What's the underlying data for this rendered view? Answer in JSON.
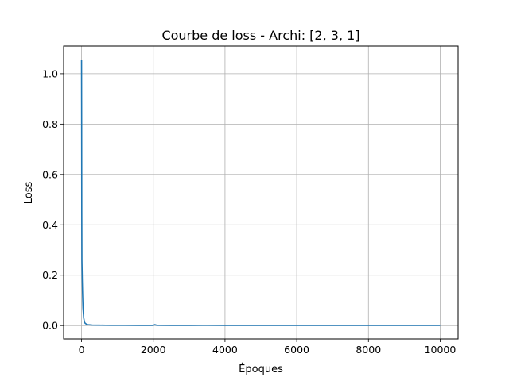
{
  "chart_data": {
    "type": "line",
    "title": "Courbe de loss - Archi: [2, 3, 1]",
    "xlabel": "Époques",
    "ylabel": "Loss",
    "xlim": [
      -500,
      10500
    ],
    "ylim": [
      -0.053,
      1.11
    ],
    "xticks": [
      0,
      2000,
      4000,
      6000,
      8000,
      10000
    ],
    "yticks": [
      0.0,
      0.2,
      0.4,
      0.6,
      0.8,
      1.0
    ],
    "xtick_labels": [
      "0",
      "2000",
      "4000",
      "6000",
      "8000",
      "10000"
    ],
    "ytick_labels": [
      "0.0",
      "0.2",
      "0.4",
      "0.6",
      "0.8",
      "1.0"
    ],
    "grid": true,
    "series": [
      {
        "color": "#1f77b4",
        "x": [
          0,
          3,
          6,
          10,
          15,
          20,
          30,
          40,
          60,
          80,
          100,
          130,
          160,
          200,
          300,
          500,
          800,
          1200,
          1600,
          2000,
          2040,
          2100,
          2500,
          3000,
          3500,
          4000,
          4500,
          5000,
          6000,
          7000,
          8000,
          9000,
          10000
        ],
        "y": [
          1.055,
          0.8,
          0.45,
          0.26,
          0.22,
          0.18,
          0.12,
          0.07,
          0.03,
          0.015,
          0.009,
          0.006,
          0.004,
          0.003,
          0.002,
          0.0015,
          0.001,
          0.001,
          0.0009,
          0.0009,
          0.0035,
          0.0012,
          0.0009,
          0.0009,
          0.0012,
          0.0008,
          0.0008,
          0.0008,
          0.0007,
          0.0007,
          0.0007,
          0.0006,
          0.0006
        ]
      }
    ]
  }
}
